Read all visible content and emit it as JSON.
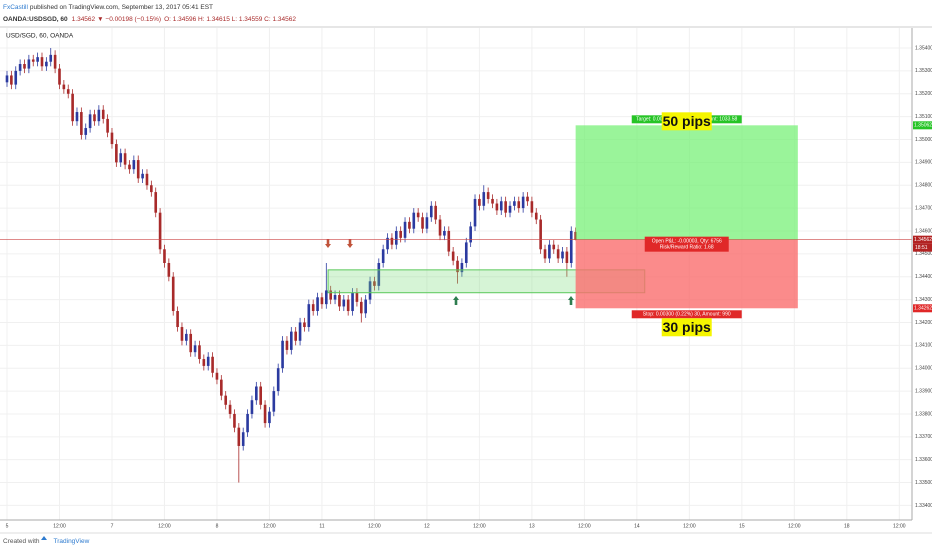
{
  "header": {
    "author": "FxCastill",
    "published": "published on TradingView.com, September 13, 2017 05:41 EST",
    "symbol": "OANDA:USDSGD, 60",
    "last": "1.34562",
    "change": "▼ −0.00198 (−0.15%)",
    "ohlc": "O: 1.34596 H: 1.34615 L: 1.34559 C: 1.34562"
  },
  "chart_data": {
    "type": "candlestick",
    "title": "USD/SGD, 60, OANDA",
    "up_color": "#2b3aa0",
    "down_color": "#a82a2a",
    "open": [
      1.3525,
      1.3528,
      1.3524,
      1.353,
      1.3533,
      1.3531,
      1.3535,
      1.3534,
      1.3536,
      1.3532,
      1.3534,
      1.3537,
      1.3531,
      1.3524,
      1.3522,
      1.352,
      1.3508,
      1.3512,
      1.3502,
      1.3505,
      1.3511,
      1.3508,
      1.3513,
      1.3509,
      1.3503,
      1.3498,
      1.349,
      1.3494,
      1.3489,
      1.3487,
      1.3491,
      1.3483,
      1.3485,
      1.348,
      1.3477,
      1.3468,
      1.3452,
      1.3446,
      1.344,
      1.3425,
      1.3418,
      1.3412,
      1.3415,
      1.3407,
      1.341,
      1.3404,
      1.3401,
      1.3405,
      1.3398,
      1.3395,
      1.3388,
      1.3384,
      1.338,
      1.3374,
      1.3366,
      1.3372,
      1.338,
      1.3386,
      1.3392,
      1.3384,
      1.3376,
      1.3381,
      1.339,
      1.34,
      1.3412,
      1.3408,
      1.3416,
      1.3412,
      1.342,
      1.3418,
      1.3428,
      1.3425,
      1.3431,
      1.3428,
      1.3434,
      1.343,
      1.3432,
      1.3427,
      1.343,
      1.3425,
      1.3433,
      1.3429,
      1.3424,
      1.343,
      1.3438,
      1.3436,
      1.3446,
      1.3452,
      1.3457,
      1.3454,
      1.346,
      1.3457,
      1.3464,
      1.3461,
      1.3468,
      1.3466,
      1.3461,
      1.3466,
      1.3471,
      1.3465,
      1.3458,
      1.346,
      1.3451,
      1.3447,
      1.3442,
      1.3446,
      1.3455,
      1.3462,
      1.3474,
      1.3471,
      1.3477,
      1.3474,
      1.3472,
      1.3469,
      1.3473,
      1.3468,
      1.3471,
      1.3473,
      1.347,
      1.3475,
      1.3473,
      1.3468,
      1.3465,
      1.3452,
      1.3448,
      1.3454,
      1.3452,
      1.3448,
      1.3451,
      1.3446,
      1.34596
    ],
    "high": [
      1.353,
      1.353,
      1.3532,
      1.3535,
      1.3535,
      1.3537,
      1.3537,
      1.3538,
      1.3538,
      1.3536,
      1.354,
      1.3539,
      1.3533,
      1.3526,
      1.3524,
      1.3522,
      1.3514,
      1.3514,
      1.3507,
      1.3513,
      1.3513,
      1.3515,
      1.3515,
      1.3511,
      1.3505,
      1.35,
      1.3496,
      1.3496,
      1.3491,
      1.3493,
      1.3493,
      1.3487,
      1.3487,
      1.3482,
      1.3479,
      1.347,
      1.3454,
      1.3448,
      1.3442,
      1.3427,
      1.342,
      1.3417,
      1.3417,
      1.3412,
      1.3412,
      1.3406,
      1.3407,
      1.3407,
      1.34,
      1.3397,
      1.339,
      1.3386,
      1.3382,
      1.3376,
      1.3374,
      1.3382,
      1.3388,
      1.3394,
      1.3394,
      1.3386,
      1.3383,
      1.3392,
      1.3402,
      1.3414,
      1.3414,
      1.3418,
      1.3418,
      1.3422,
      1.3422,
      1.343,
      1.343,
      1.3433,
      1.3433,
      1.3446,
      1.3436,
      1.3434,
      1.3434,
      1.3432,
      1.3432,
      1.3435,
      1.3435,
      1.3431,
      1.3432,
      1.344,
      1.344,
      1.3448,
      1.3454,
      1.3459,
      1.3459,
      1.3462,
      1.3462,
      1.3466,
      1.3466,
      1.347,
      1.347,
      1.3468,
      1.3468,
      1.3473,
      1.3473,
      1.3467,
      1.3462,
      1.3462,
      1.3453,
      1.3449,
      1.3448,
      1.3457,
      1.3464,
      1.3476,
      1.3476,
      1.348,
      1.3479,
      1.3476,
      1.3474,
      1.3475,
      1.3475,
      1.3473,
      1.3475,
      1.3475,
      1.3477,
      1.3477,
      1.3475,
      1.347,
      1.3467,
      1.3454,
      1.3456,
      1.3456,
      1.3454,
      1.3453,
      1.3453,
      1.3462,
      1.34615
    ],
    "low": [
      1.3523,
      1.3522,
      1.3522,
      1.3528,
      1.3529,
      1.3529,
      1.3532,
      1.3532,
      1.353,
      1.353,
      1.3532,
      1.3529,
      1.3522,
      1.352,
      1.3518,
      1.3506,
      1.3506,
      1.35,
      1.35,
      1.3503,
      1.3506,
      1.3506,
      1.3507,
      1.3501,
      1.3496,
      1.3488,
      1.3488,
      1.3487,
      1.3485,
      1.3485,
      1.3481,
      1.3481,
      1.3478,
      1.3475,
      1.3466,
      1.345,
      1.3444,
      1.3438,
      1.3423,
      1.3416,
      1.341,
      1.341,
      1.3405,
      1.3405,
      1.3402,
      1.3399,
      1.3399,
      1.3396,
      1.3393,
      1.3386,
      1.3382,
      1.3378,
      1.3372,
      1.335,
      1.3364,
      1.337,
      1.3378,
      1.3384,
      1.3382,
      1.3374,
      1.3374,
      1.3379,
      1.3388,
      1.3398,
      1.3406,
      1.3406,
      1.341,
      1.341,
      1.3416,
      1.3416,
      1.3423,
      1.3423,
      1.3426,
      1.3426,
      1.3428,
      1.3428,
      1.3425,
      1.3425,
      1.3423,
      1.3423,
      1.3427,
      1.342,
      1.3422,
      1.3428,
      1.3434,
      1.3434,
      1.3444,
      1.345,
      1.3452,
      1.3452,
      1.3455,
      1.3455,
      1.3459,
      1.3459,
      1.3464,
      1.3459,
      1.3459,
      1.3464,
      1.3463,
      1.3456,
      1.3456,
      1.3449,
      1.3445,
      1.3437,
      1.344,
      1.3444,
      1.3453,
      1.346,
      1.3469,
      1.3469,
      1.3472,
      1.347,
      1.3467,
      1.3467,
      1.3466,
      1.3466,
      1.3469,
      1.3468,
      1.3468,
      1.3471,
      1.3466,
      1.3463,
      1.345,
      1.3446,
      1.3446,
      1.345,
      1.3446,
      1.3446,
      1.344,
      1.3444,
      1.34559
    ],
    "close": [
      1.3528,
      1.3524,
      1.353,
      1.3533,
      1.3531,
      1.3535,
      1.3534,
      1.3536,
      1.3532,
      1.3534,
      1.3537,
      1.3531,
      1.3524,
      1.3522,
      1.352,
      1.3508,
      1.3512,
      1.3502,
      1.3505,
      1.3511,
      1.3508,
      1.3513,
      1.3509,
      1.3503,
      1.3498,
      1.349,
      1.3494,
      1.3489,
      1.3487,
      1.3491,
      1.3483,
      1.3485,
      1.348,
      1.3477,
      1.3468,
      1.3452,
      1.3446,
      1.344,
      1.3425,
      1.3418,
      1.3412,
      1.3415,
      1.3407,
      1.341,
      1.3404,
      1.3401,
      1.3405,
      1.3398,
      1.3395,
      1.3388,
      1.3384,
      1.338,
      1.3374,
      1.3366,
      1.3372,
      1.338,
      1.3386,
      1.3392,
      1.3384,
      1.3376,
      1.3381,
      1.339,
      1.34,
      1.3412,
      1.3408,
      1.3416,
      1.3412,
      1.342,
      1.3418,
      1.3428,
      1.3425,
      1.3431,
      1.3428,
      1.3434,
      1.343,
      1.3432,
      1.3427,
      1.343,
      1.3425,
      1.3433,
      1.3429,
      1.3424,
      1.343,
      1.3438,
      1.3436,
      1.3446,
      1.3452,
      1.3457,
      1.3454,
      1.346,
      1.3457,
      1.3464,
      1.3461,
      1.3468,
      1.3466,
      1.3461,
      1.3466,
      1.3471,
      1.3465,
      1.3458,
      1.346,
      1.3451,
      1.3447,
      1.3442,
      1.3446,
      1.3455,
      1.3462,
      1.3474,
      1.3471,
      1.3477,
      1.3474,
      1.3472,
      1.3469,
      1.3473,
      1.3468,
      1.3471,
      1.3473,
      1.347,
      1.3475,
      1.3473,
      1.3468,
      1.3465,
      1.3452,
      1.3448,
      1.3454,
      1.3452,
      1.3448,
      1.3451,
      1.3446,
      1.346,
      1.34562
    ],
    "xlim": [
      -1.6,
      206.9
    ],
    "xticks": [
      {
        "value": 0,
        "label": "5"
      },
      {
        "value": 12,
        "label": "12:00"
      },
      {
        "value": 24,
        "label": "7"
      },
      {
        "value": 36,
        "label": "12:00"
      },
      {
        "value": 48,
        "label": "8"
      },
      {
        "value": 60,
        "label": "12:00"
      },
      {
        "value": 72,
        "label": "11"
      },
      {
        "value": 84,
        "label": "12:00"
      },
      {
        "value": 96,
        "label": "12"
      },
      {
        "value": 108,
        "label": "12:00"
      },
      {
        "value": 120,
        "label": "13"
      },
      {
        "value": 132,
        "label": "12:00"
      },
      {
        "value": 144,
        "label": "14"
      },
      {
        "value": 156,
        "label": "12:00"
      },
      {
        "value": 168,
        "label": "15"
      },
      {
        "value": 180,
        "label": "12:00"
      },
      {
        "value": 192,
        "label": "18"
      },
      {
        "value": 204,
        "label": "12:00"
      }
    ],
    "ylim": [
      1.3338,
      1.3547
    ],
    "yticks": [
      {
        "value": 1.334,
        "label": "1.33400"
      },
      {
        "value": 1.335,
        "label": "1.33500"
      },
      {
        "value": 1.336,
        "label": "1.33600"
      },
      {
        "value": 1.337,
        "label": "1.33700"
      },
      {
        "value": 1.338,
        "label": "1.33800"
      },
      {
        "value": 1.339,
        "label": "1.33900"
      },
      {
        "value": 1.34,
        "label": "1.34000"
      },
      {
        "value": 1.341,
        "label": "1.34100"
      },
      {
        "value": 1.342,
        "label": "1.34200"
      },
      {
        "value": 1.343,
        "label": "1.34300"
      },
      {
        "value": 1.344,
        "label": "1.34400"
      },
      {
        "value": 1.345,
        "label": "1.34500"
      },
      {
        "value": 1.346,
        "label": "1.34600"
      },
      {
        "value": 1.347,
        "label": "1.34700"
      },
      {
        "value": 1.348,
        "label": "1.34800"
      },
      {
        "value": 1.349,
        "label": "1.34900"
      },
      {
        "value": 1.35,
        "label": "1.35000"
      },
      {
        "value": 1.351,
        "label": "1.35100"
      },
      {
        "value": 1.352,
        "label": "1.35200"
      },
      {
        "value": 1.353,
        "label": "1.35300"
      },
      {
        "value": 1.354,
        "label": "1.35400"
      }
    ],
    "grid": true,
    "countdown": "18:51",
    "support_zone": [
      1.3433,
      1.3443
    ],
    "position": {
      "entry": 1.34562,
      "target": 1.35062,
      "stop": 1.34262,
      "target_label": "Target: 0.00500 (0.37%) 50, Amount: 1033.58",
      "stop_label": "Stop: 0.00300 (0.22%) 30, Amount: 990",
      "pnl_label": "Open P&L: -0.00003, Qty: 6756",
      "ratio_label": "Risk/Reward Ratio: 1.68"
    },
    "annotations": [
      "50 pips",
      "30 pips"
    ]
  },
  "footer": {
    "created": "Created with",
    "brand": "TradingView"
  }
}
